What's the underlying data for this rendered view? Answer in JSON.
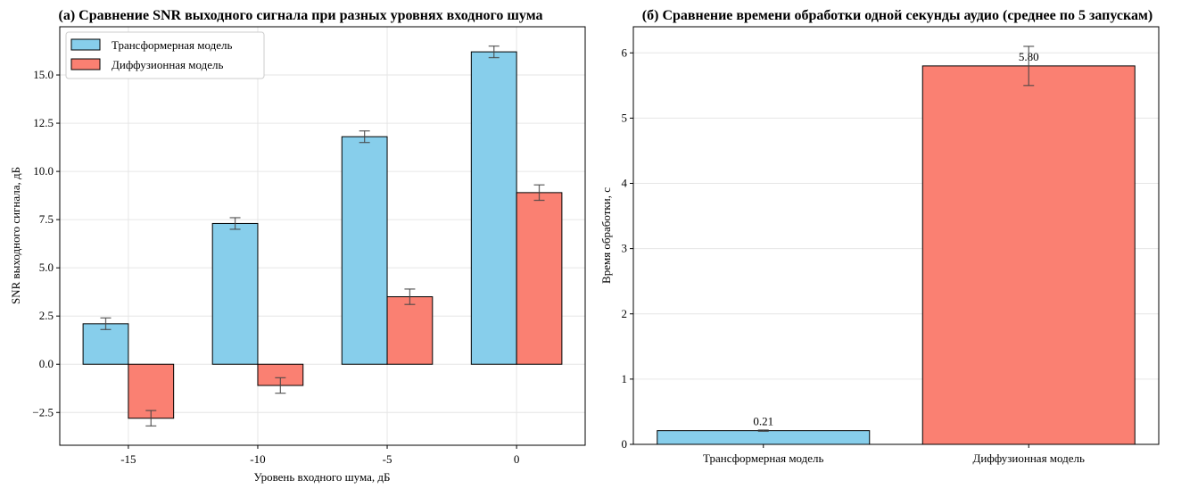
{
  "chart_data": [
    {
      "type": "bar",
      "title": "(a) Сравнение SNR выходного сигнала при разных уровнях входного шума",
      "xlabel": "Уровень входного шума, дБ",
      "ylabel": "SNR выходного сигнала, дБ",
      "categories": [
        "-15",
        "-10",
        "-5",
        "0"
      ],
      "series": [
        {
          "name": "Трансформерная модель",
          "color": "#87CEEB",
          "values": [
            2.1,
            7.3,
            11.8,
            16.2
          ],
          "errors": [
            0.3,
            0.3,
            0.3,
            0.3
          ]
        },
        {
          "name": "Диффузионная модель",
          "color": "#FA8072",
          "values": [
            -2.8,
            -1.1,
            3.5,
            8.9
          ],
          "errors": [
            0.4,
            0.4,
            0.4,
            0.4
          ]
        }
      ],
      "ylim": [
        -4.2,
        17.5
      ],
      "yticks": [
        "-2.5",
        "0.0",
        "2.5",
        "5.0",
        "7.5",
        "10.0",
        "12.5",
        "15.0"
      ],
      "grid": true,
      "legend": "top-left"
    },
    {
      "type": "bar",
      "title": "(б) Сравнение времени обработки одной секунды аудио (среднее по 5 запускам)",
      "xlabel": "",
      "ylabel": "Время обработки, с",
      "categories": [
        "Трансформерная модель",
        "Диффузионная модель"
      ],
      "values": [
        0.21,
        5.8
      ],
      "errors": [
        0.01,
        0.3
      ],
      "data_labels": [
        "0.21",
        "5.80"
      ],
      "colors": [
        "#87CEEB",
        "#FA8072"
      ],
      "ylim": [
        0,
        6.4
      ],
      "yticks": [
        "0",
        "1",
        "2",
        "3",
        "4",
        "5",
        "6"
      ],
      "grid": true
    }
  ]
}
